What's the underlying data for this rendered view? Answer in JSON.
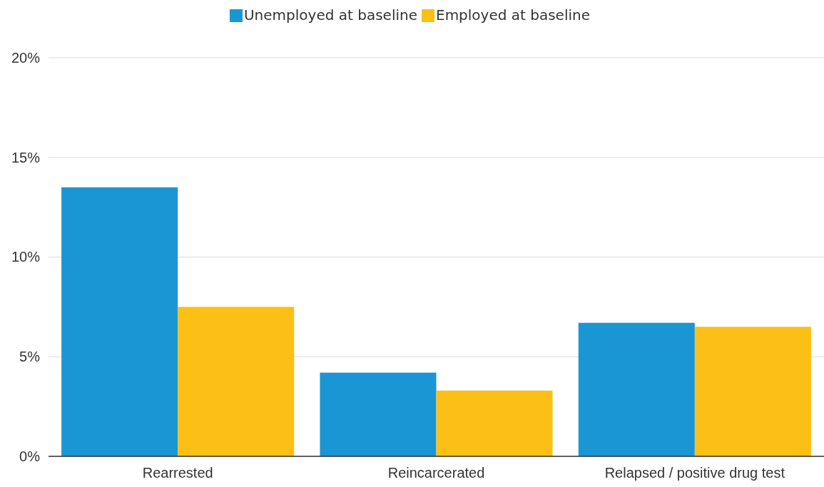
{
  "chart_data": {
    "type": "bar",
    "categories": [
      "Rearrested",
      "Reincarcerated",
      "Relapsed / positive drug test"
    ],
    "series": [
      {
        "name": "Unemployed at baseline",
        "color": "#1a96d4",
        "values": [
          13.5,
          4.2,
          6.7
        ]
      },
      {
        "name": "Employed at baseline",
        "color": "#fbbf16",
        "values": [
          7.5,
          3.3,
          6.5
        ]
      }
    ],
    "ylim": [
      0,
      20
    ],
    "yticks": [
      {
        "value": 0,
        "label": "0%"
      },
      {
        "value": 5,
        "label": "5%"
      },
      {
        "value": 10,
        "label": "10%"
      },
      {
        "value": 15,
        "label": "15%"
      },
      {
        "value": 20,
        "label": "20%"
      }
    ],
    "grid": "y",
    "legend": "top"
  }
}
